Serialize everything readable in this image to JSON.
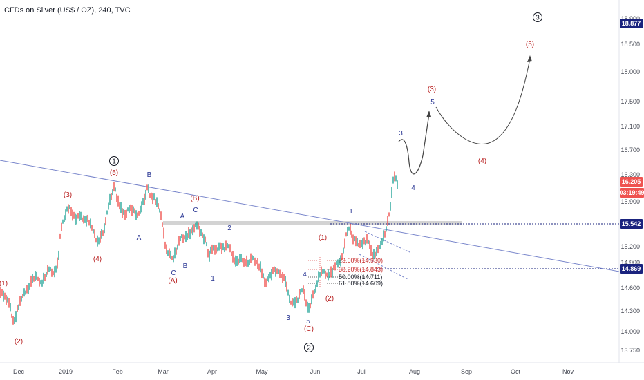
{
  "header": {
    "title": "CFDs on Silver (US$ / OZ), 240, TVC"
  },
  "chart_data": {
    "type": "line",
    "y_ticks": [
      "18.900",
      "18.500",
      "18.000",
      "17.500",
      "17.100",
      "16.700",
      "16.300",
      "15.900",
      "15.200",
      "14.900",
      "14.600",
      "14.300",
      "14.000",
      "13.750"
    ],
    "x_ticks": [
      "Dec",
      "2019",
      "Feb",
      "Mar",
      "Apr",
      "May",
      "Jun",
      "Jul",
      "Aug",
      "Sep",
      "Oct",
      "Nov"
    ],
    "price_labels": [
      {
        "text": "18.877",
        "color": "#1a237e"
      },
      {
        "text": "16.205",
        "color": "#ef5350"
      },
      {
        "text": "03:19:49",
        "color": "#ef5350"
      },
      {
        "text": "15.542",
        "color": "#1a237e"
      },
      {
        "text": "14.869",
        "color": "#1a237e"
      }
    ],
    "horizontal_levels": [
      15.542,
      14.869
    ],
    "fib_levels": [
      {
        "text": "23.60%(14.930)",
        "color": "#c62828"
      },
      {
        "text": "38.20%(14.843)",
        "color": "#c62828"
      },
      {
        "text": "50.00%(14.711)",
        "color": "#131722"
      },
      {
        "text": "61.80%(14.609)",
        "color": "#131722"
      }
    ],
    "wave_labels": [
      {
        "text": "(1)",
        "color": "red"
      },
      {
        "text": "(2)",
        "color": "red"
      },
      {
        "text": "(3)",
        "color": "red"
      },
      {
        "text": "(4)",
        "color": "red"
      },
      {
        "text": "(5)",
        "color": "red"
      },
      {
        "text": "B",
        "color": "blue"
      },
      {
        "text": "A",
        "color": "blue"
      },
      {
        "text": "(B)",
        "color": "red"
      },
      {
        "text": "A",
        "color": "blue"
      },
      {
        "text": "C",
        "color": "blue"
      },
      {
        "text": "C",
        "color": "blue"
      },
      {
        "text": "B",
        "color": "blue"
      },
      {
        "text": "(A)",
        "color": "red"
      },
      {
        "text": "1",
        "color": "blue"
      },
      {
        "text": "2",
        "color": "blue"
      },
      {
        "text": "3",
        "color": "blue"
      },
      {
        "text": "4",
        "color": "blue"
      },
      {
        "text": "5",
        "color": "blue"
      },
      {
        "text": "(C)",
        "color": "red"
      },
      {
        "text": "(1)",
        "color": "red"
      },
      {
        "text": "(2)",
        "color": "red"
      },
      {
        "text": "1",
        "color": "blue"
      },
      {
        "text": "3",
        "color": "blue"
      },
      {
        "text": "4",
        "color": "blue"
      },
      {
        "text": "(3)",
        "color": "red"
      },
      {
        "text": "5",
        "color": "blue"
      },
      {
        "text": "(4)",
        "color": "red"
      },
      {
        "text": "(5)",
        "color": "red"
      }
    ],
    "circled_labels": [
      "1",
      "2",
      "3"
    ],
    "colors": {
      "up": "#26a69a",
      "down": "#ef5350",
      "trendline": "#7986cb",
      "level": "#1a237e",
      "zone": "#c8c8c8"
    }
  }
}
